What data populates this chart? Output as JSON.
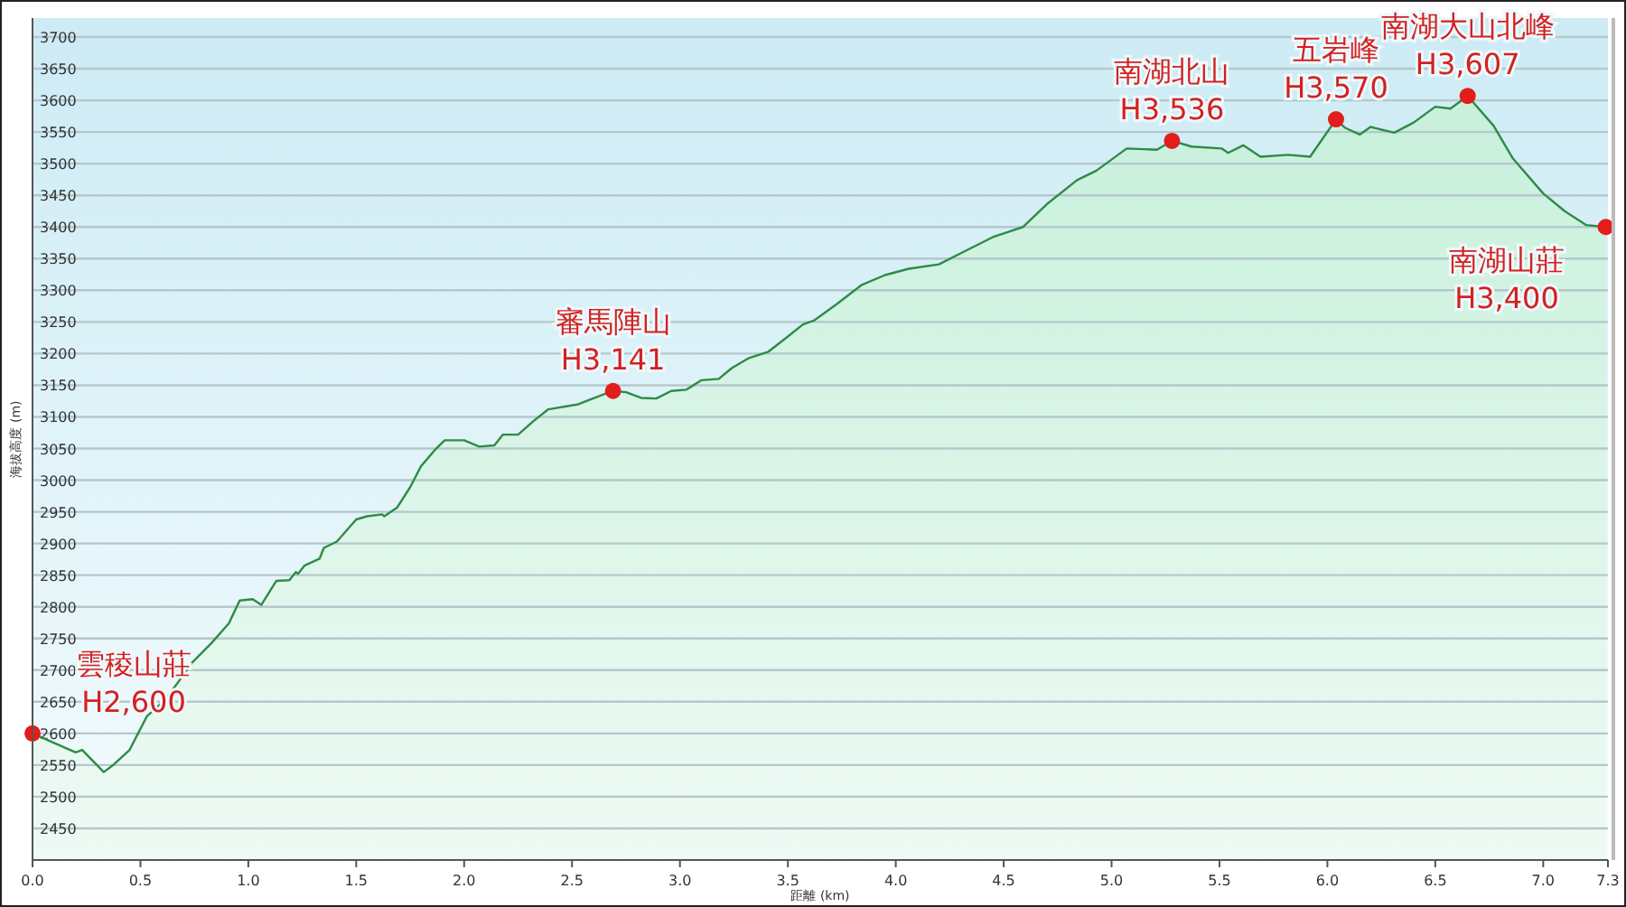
{
  "chart_data": {
    "type": "area",
    "xlabel": "距離 (km)",
    "ylabel": "海拔高度 (m)",
    "xlim": [
      0,
      7.3
    ],
    "ylim": [
      2400,
      3730
    ],
    "xticks": [
      {
        "value": 0,
        "label": "0.0"
      },
      0.5,
      {
        "value": 1,
        "label": "1.0"
      },
      1.5,
      {
        "value": 2,
        "label": "2.0"
      },
      2.5,
      {
        "value": 3,
        "label": "3.0"
      },
      3.5,
      {
        "value": 4,
        "label": "4.0"
      },
      4.5,
      {
        "value": 5,
        "label": "5.0"
      },
      5.5,
      {
        "value": 6,
        "label": "6.0"
      },
      6.5,
      {
        "value": 7,
        "label": "7.0"
      },
      7.3
    ],
    "yticks": [
      2450,
      2500,
      2550,
      2600,
      2650,
      2700,
      2750,
      2800,
      2850,
      2900,
      2950,
      3000,
      3050,
      3100,
      3150,
      3200,
      3250,
      3300,
      3350,
      3400,
      3450,
      3500,
      3550,
      3600,
      3650,
      3700
    ],
    "grid": "y",
    "series": [
      {
        "color": "#2e8b45",
        "x": [
          0.0,
          0.2,
          0.23,
          0.33,
          0.37,
          0.45,
          0.53,
          0.62,
          0.74,
          0.83,
          0.91,
          0.96,
          1.02,
          1.06,
          1.13,
          1.19,
          1.22,
          1.23,
          1.26,
          1.33,
          1.35,
          1.41,
          1.5,
          1.55,
          1.62,
          1.63,
          1.69,
          1.75,
          1.8,
          1.87,
          1.91,
          2.0,
          2.07,
          2.14,
          2.18,
          2.25,
          2.32,
          2.39,
          2.53,
          2.58,
          2.69,
          2.75,
          2.82,
          2.89,
          2.96,
          3.03,
          3.1,
          3.18,
          3.24,
          3.32,
          3.41,
          3.5,
          3.57,
          3.62,
          3.73,
          3.84,
          3.95,
          4.06,
          4.2,
          4.31,
          4.45,
          4.59,
          4.7,
          4.84,
          4.93,
          5.07,
          5.21,
          5.28,
          5.37,
          5.51,
          5.54,
          5.61,
          5.69,
          5.82,
          5.92,
          6.04,
          6.08,
          6.15,
          6.2,
          6.31,
          6.4,
          6.5,
          6.57,
          6.65,
          6.77,
          6.86,
          7.0,
          7.1,
          7.2,
          7.29
        ],
        "values": [
          2600,
          2570,
          2574,
          2539,
          2549,
          2574,
          2627,
          2655,
          2712,
          2743,
          2774,
          2810,
          2812,
          2803,
          2841,
          2842,
          2855,
          2852,
          2865,
          2876,
          2893,
          2903,
          2938,
          2943,
          2946,
          2943,
          2957,
          2989,
          3022,
          3050,
          3063,
          3063,
          3053,
          3055,
          3072,
          3072,
          3093,
          3112,
          3120,
          3127,
          3141,
          3139,
          3130,
          3129,
          3141,
          3143,
          3158,
          3160,
          3177,
          3193,
          3203,
          3227,
          3246,
          3252,
          3279,
          3308,
          3324,
          3334,
          3341,
          3360,
          3384,
          3400,
          3436,
          3474,
          3489,
          3524,
          3522,
          3536,
          3527,
          3524,
          3517,
          3529,
          3511,
          3514,
          3511,
          3570,
          3557,
          3546,
          3558,
          3549,
          3565,
          3590,
          3587,
          3607,
          3560,
          3508,
          3453,
          3425,
          3403,
          3400
        ]
      },
      {
        "type": "scatter",
        "color": "#e31c1c",
        "marker": "circle",
        "x": [
          0.0,
          2.69,
          5.28,
          6.04,
          6.65,
          7.29
        ],
        "values": [
          2600,
          3141,
          3536,
          3570,
          3607,
          3400
        ]
      }
    ],
    "annotations": [
      {
        "text": "雲稜山莊\nH2,600",
        "x": 0.0,
        "y": 2600
      },
      {
        "text": "審馬陣山\nH3,141",
        "x": 2.69,
        "y": 3141
      },
      {
        "text": "南湖北山\nH3,536",
        "x": 5.28,
        "y": 3536
      },
      {
        "text": "五岩峰\nH3,570",
        "x": 6.04,
        "y": 3570
      },
      {
        "text": "南湖大山北峰\nH3,607",
        "x": 6.65,
        "y": 3607
      },
      {
        "text": "南湖山莊\nH3,400",
        "x": 7.29,
        "y": 3400
      }
    ]
  }
}
